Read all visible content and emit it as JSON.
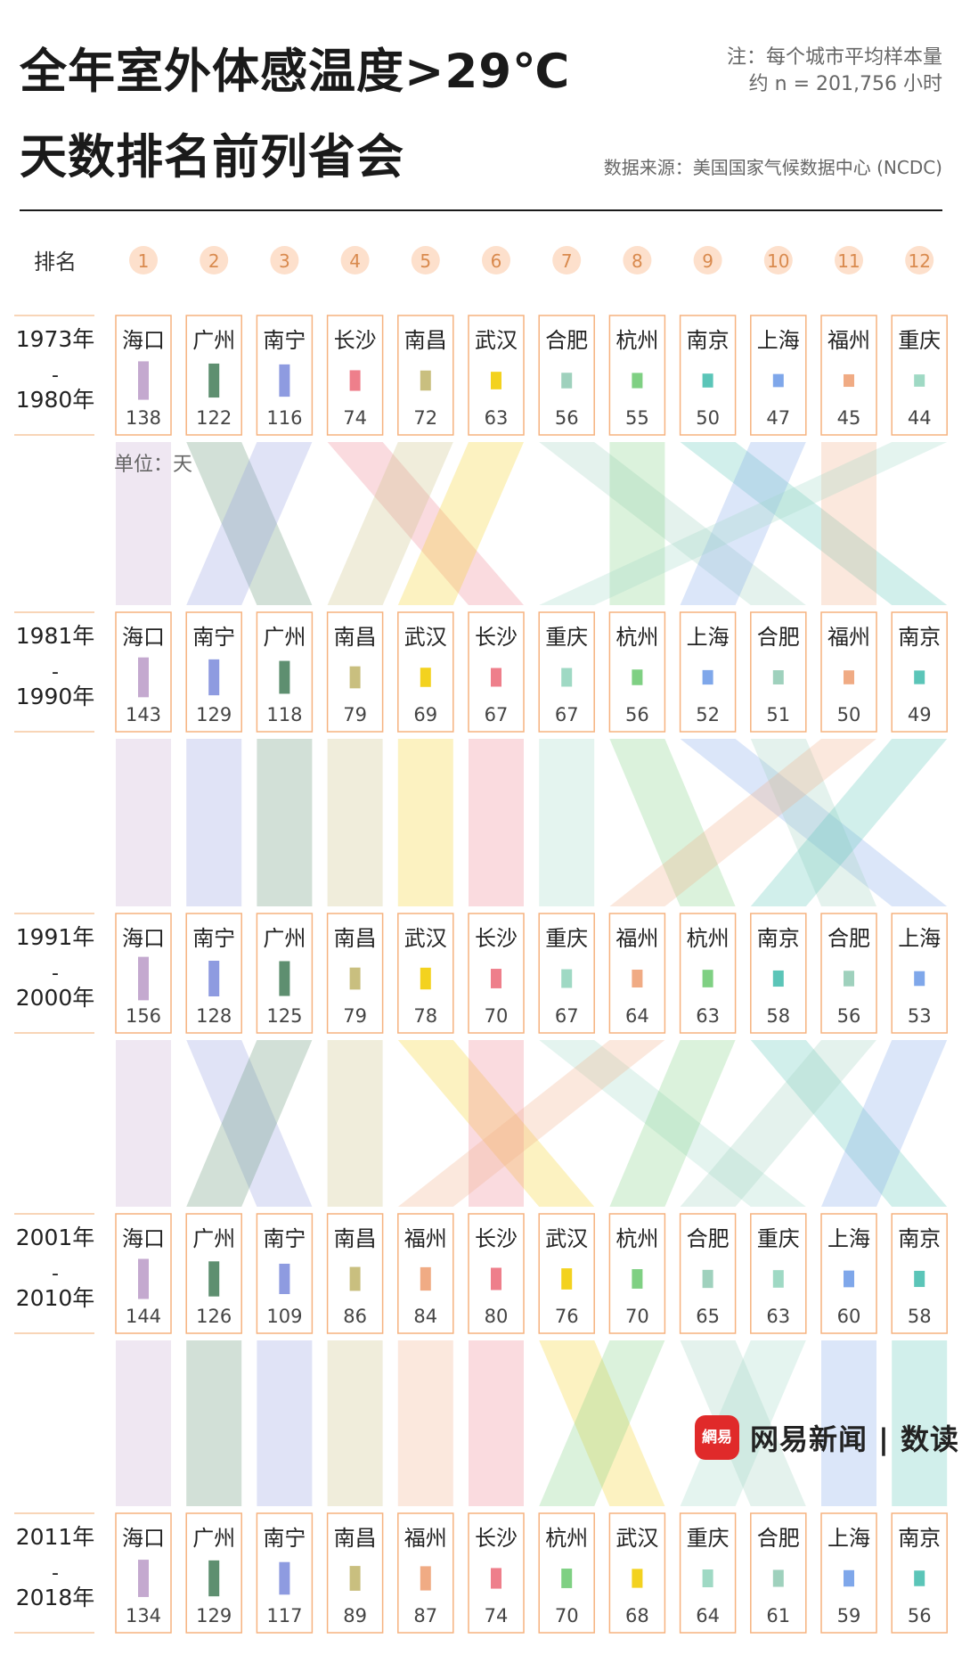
{
  "header": {
    "title_line1": "全年室外体感温度>29℃",
    "title_line2": "天数排名前列省会",
    "note_line1": "注：每个城市平均样本量",
    "note_line2": "约 n = 201,756 小时",
    "source": "数据来源：美国国家气候数据中心 (NCDC)"
  },
  "logo": {
    "mark": "網易",
    "text": "网易新闻 | 数读"
  },
  "chart_data": {
    "type": "bump",
    "rank_label": "排名",
    "unit_label": "单位：天",
    "ranks": [
      "1",
      "2",
      "3",
      "4",
      "5",
      "6",
      "7",
      "8",
      "9",
      "10",
      "11",
      "12"
    ],
    "period_sep": "-",
    "city_colors": {
      "海口": "#c4a9cf",
      "广州": "#5e8f70",
      "南宁": "#8e9be0",
      "长沙": "#ee7f8b",
      "南昌": "#c9bf7f",
      "武汉": "#f3d21f",
      "合肥": "#9fd1bd",
      "杭州": "#7fd083",
      "南京": "#5bc5b8",
      "上海": "#7fa7ea",
      "福州": "#f0ab84",
      "重庆": "#9fd9c4"
    },
    "periods": [
      {
        "start": "1973年",
        "end": "1980年",
        "cities": [
          "海口",
          "广州",
          "南宁",
          "长沙",
          "南昌",
          "武汉",
          "合肥",
          "杭州",
          "南京",
          "上海",
          "福州",
          "重庆"
        ],
        "values": [
          138,
          122,
          116,
          74,
          72,
          63,
          56,
          55,
          50,
          47,
          45,
          44
        ]
      },
      {
        "start": "1981年",
        "end": "1990年",
        "cities": [
          "海口",
          "南宁",
          "广州",
          "南昌",
          "武汉",
          "长沙",
          "重庆",
          "杭州",
          "上海",
          "合肥",
          "福州",
          "南京"
        ],
        "values": [
          143,
          129,
          118,
          79,
          69,
          67,
          67,
          56,
          52,
          51,
          50,
          49
        ]
      },
      {
        "start": "1991年",
        "end": "2000年",
        "cities": [
          "海口",
          "南宁",
          "广州",
          "南昌",
          "武汉",
          "长沙",
          "重庆",
          "福州",
          "杭州",
          "南京",
          "合肥",
          "上海"
        ],
        "values": [
          156,
          128,
          125,
          79,
          78,
          70,
          67,
          64,
          63,
          58,
          56,
          53
        ]
      },
      {
        "start": "2001年",
        "end": "2010年",
        "cities": [
          "海口",
          "广州",
          "南宁",
          "南昌",
          "福州",
          "长沙",
          "武汉",
          "杭州",
          "合肥",
          "重庆",
          "上海",
          "南京"
        ],
        "values": [
          144,
          126,
          109,
          86,
          84,
          80,
          76,
          70,
          65,
          63,
          60,
          58
        ]
      },
      {
        "start": "2011年",
        "end": "2018年",
        "cities": [
          "海口",
          "广州",
          "南宁",
          "南昌",
          "福州",
          "长沙",
          "杭州",
          "武汉",
          "重庆",
          "合肥",
          "上海",
          "南京"
        ],
        "values": [
          134,
          129,
          117,
          89,
          87,
          74,
          70,
          68,
          64,
          61,
          59,
          56
        ]
      }
    ]
  }
}
